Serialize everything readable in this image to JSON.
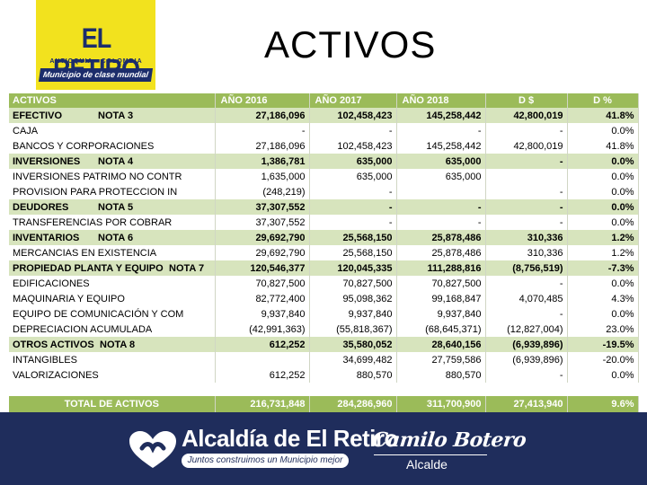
{
  "header": {
    "logo_name": "EL RETIRO",
    "logo_sub": "ANTIOQUIA - COLOMBIA",
    "logo_tagline": "Municipio de clase mundial",
    "title": "ACTIVOS"
  },
  "table": {
    "columns": [
      "ACTIVOS",
      "AÑO 2016",
      "AÑO 2017",
      "AÑO 2018",
      "D $",
      "D %"
    ],
    "rows": [
      {
        "label": "EFECTIVO",
        "note": "NOTA 3",
        "v2016": "27,186,096",
        "v2017": "102,458,423",
        "v2018": "145,258,442",
        "d": "42,800,019",
        "pct": "41.8%",
        "highlight": true
      },
      {
        "label": "CAJA",
        "note": "",
        "v2016": "-",
        "v2017": "-",
        "v2018": "-",
        "d": "-",
        "pct": "0.0%",
        "highlight": false
      },
      {
        "label": "BANCOS Y CORPORACIONES",
        "note": "",
        "v2016": "27,186,096",
        "v2017": "102,458,423",
        "v2018": "145,258,442",
        "d": "42,800,019",
        "pct": "41.8%",
        "highlight": false
      },
      {
        "label": "INVERSIONES",
        "note": "NOTA 4",
        "v2016": "1,386,781",
        "v2017": "635,000",
        "v2018": "635,000",
        "d": "-",
        "pct": "0.0%",
        "highlight": true
      },
      {
        "label": "INVERSIONES PATRIMO NO CONTR",
        "note": "",
        "v2016": "1,635,000",
        "v2017": "635,000",
        "v2018": "635,000",
        "d": "",
        "pct": "0.0%",
        "highlight": false
      },
      {
        "label": "PROVISION PARA PROTECCION IN",
        "note": "",
        "v2016": "(248,219)",
        "v2017": "-",
        "v2018": "",
        "d": "-",
        "pct": "0.0%",
        "highlight": false
      },
      {
        "label": "DEUDORES",
        "note": "NOTA 5",
        "v2016": "37,307,552",
        "v2017": "-",
        "v2018": "-",
        "d": "-",
        "pct": "0.0%",
        "highlight": true
      },
      {
        "label": "TRANSFERENCIAS POR COBRAR",
        "note": "",
        "v2016": "37,307,552",
        "v2017": "-",
        "v2018": "-",
        "d": "-",
        "pct": "0.0%",
        "highlight": false
      },
      {
        "label": "INVENTARIOS",
        "note": "NOTA 6",
        "v2016": "29,692,790",
        "v2017": "25,568,150",
        "v2018": "25,878,486",
        "d": "310,336",
        "pct": "1.2%",
        "highlight": true
      },
      {
        "label": "MERCANCIAS EN EXISTENCIA",
        "note": "",
        "v2016": "29,692,790",
        "v2017": "25,568,150",
        "v2018": "25,878,486",
        "d": "310,336",
        "pct": "1.2%",
        "highlight": false
      },
      {
        "label": "PROPIEDAD PLANTA Y EQUIPO",
        "note": "NOTA 7",
        "v2016": "120,546,377",
        "v2017": "120,045,335",
        "v2018": "111,288,816",
        "d": "(8,756,519)",
        "pct": "-7.3%",
        "highlight": true
      },
      {
        "label": "EDIFICACIONES",
        "note": "",
        "v2016": "70,827,500",
        "v2017": "70,827,500",
        "v2018": "70,827,500",
        "d": "-",
        "pct": "0.0%",
        "highlight": false
      },
      {
        "label": "MAQUINARIA Y EQUIPO",
        "note": "",
        "v2016": "82,772,400",
        "v2017": "95,098,362",
        "v2018": "99,168,847",
        "d": "4,070,485",
        "pct": "4.3%",
        "highlight": false
      },
      {
        "label": "EQUIPO DE COMUNICACIÓN Y COM",
        "note": "",
        "v2016": "9,937,840",
        "v2017": "9,937,840",
        "v2018": "9,937,840",
        "d": "-",
        "pct": "0.0%",
        "highlight": false
      },
      {
        "label": "DEPRECIACION ACUMULADA",
        "note": "",
        "v2016": "(42,991,363)",
        "v2017": "(55,818,367)",
        "v2018": "(68,645,371)",
        "d": "(12,827,004)",
        "pct": "23.0%",
        "highlight": false
      },
      {
        "label": "OTROS ACTIVOS",
        "note": "NOTA 8",
        "v2016": "612,252",
        "v2017": "35,580,052",
        "v2018": "28,640,156",
        "d": "(6,939,896)",
        "pct": "-19.5%",
        "highlight": true
      },
      {
        "label": "INTANGIBLES",
        "note": "",
        "v2016": "",
        "v2017": "34,699,482",
        "v2018": "27,759,586",
        "d": "(6,939,896)",
        "pct": "-20.0%",
        "highlight": false
      },
      {
        "label": "VALORIZACIONES",
        "note": "",
        "v2016": "612,252",
        "v2017": "880,570",
        "v2018": "880,570",
        "d": "-",
        "pct": "0.0%",
        "highlight": false
      }
    ],
    "total": {
      "label": "TOTAL DE ACTIVOS",
      "v2016": "216,731,848",
      "v2017": "284,286,960",
      "v2018": "311,700,900",
      "d": "27,413,940",
      "pct": "9.6%"
    }
  },
  "footer": {
    "org_name": "Alcaldía de El Retiro",
    "org_tagline": "Juntos construimos un Municipio mejor",
    "mayor_name": "Camilo Botero",
    "mayor_role": "Alcalde"
  },
  "colors": {
    "header_green": "#9bbb59",
    "row_green": "#d7e4bd",
    "footer_navy": "#1f2d5c",
    "logo_yellow": "#f2e21e"
  }
}
